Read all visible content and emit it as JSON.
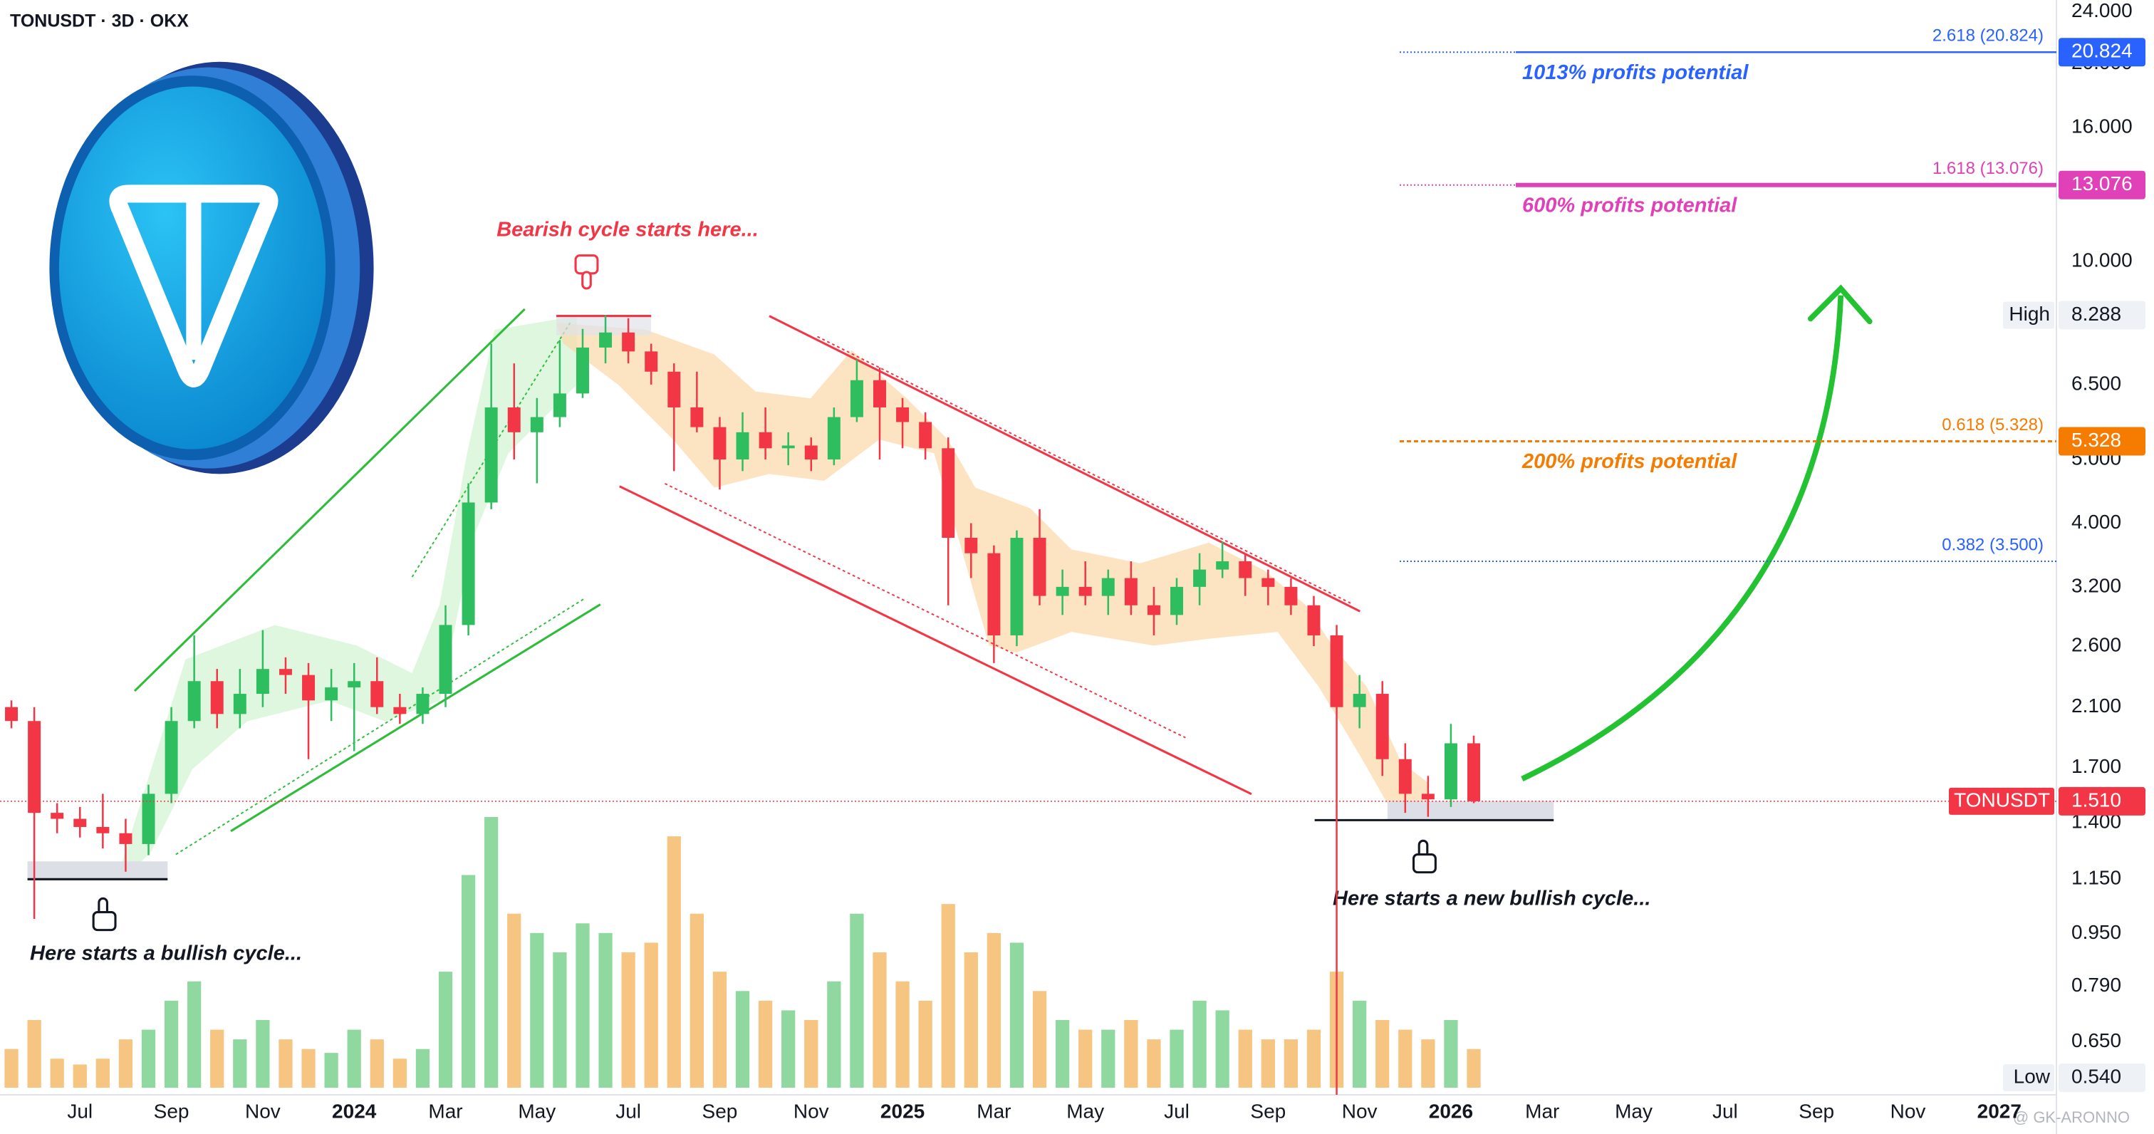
{
  "chart_data": {
    "type": "candlestick",
    "title": "TONUSDT · 3D · OKX",
    "log_scale": true,
    "grid": false,
    "ylim": [
      0.54,
      25
    ],
    "yticks": [
      {
        "value": 24,
        "label": "24.000"
      },
      {
        "value": 20,
        "label": "20.000"
      },
      {
        "value": 16,
        "label": "16.000"
      },
      {
        "value": 10,
        "label": "10.000"
      },
      {
        "value": 6.5,
        "label": "6.500"
      },
      {
        "value": 5,
        "label": "5.000"
      },
      {
        "value": 4,
        "label": "4.000"
      },
      {
        "value": 3.2,
        "label": "3.200"
      },
      {
        "value": 2.6,
        "label": "2.600"
      },
      {
        "value": 2.1,
        "label": "2.100"
      },
      {
        "value": 1.7,
        "label": "1.700"
      },
      {
        "value": 1.4,
        "label": "1.400"
      },
      {
        "value": 1.15,
        "label": "1.150"
      },
      {
        "value": 0.95,
        "label": "0.950"
      },
      {
        "value": 0.79,
        "label": "0.790"
      },
      {
        "value": 0.65,
        "label": "0.650"
      }
    ],
    "categories": [
      null,
      null,
      null,
      "Jul",
      null,
      null,
      null,
      "Sep",
      null,
      null,
      null,
      "Nov",
      null,
      null,
      null,
      "2024",
      null,
      null,
      null,
      "Mar",
      null,
      null,
      null,
      "May",
      null,
      null,
      null,
      "Jul",
      null,
      null,
      null,
      "Sep",
      null,
      null,
      null,
      "Nov",
      null,
      null,
      null,
      "2025",
      null,
      null,
      null,
      "Mar",
      null,
      null,
      null,
      "May",
      null,
      null,
      null,
      "Jul",
      null,
      null,
      null,
      "Sep",
      null,
      null,
      null,
      "Nov",
      null,
      null,
      null,
      "2026",
      null,
      null,
      null,
      "Mar",
      null,
      null,
      null,
      "May",
      null,
      null,
      null,
      "Jul",
      null,
      null,
      null,
      "Sep",
      null,
      null,
      null,
      "Nov",
      null,
      null,
      null,
      "2027",
      null,
      null
    ],
    "open": [
      2.1,
      2.0,
      1.45,
      1.42,
      1.38,
      1.35,
      1.3,
      1.55,
      2.0,
      2.3,
      2.05,
      2.2,
      2.4,
      2.35,
      2.15,
      2.25,
      2.3,
      2.1,
      2.05,
      2.2,
      2.8,
      4.3,
      6.0,
      5.5,
      5.8,
      6.3,
      7.4,
      7.8,
      7.3,
      6.8,
      6.0,
      5.6,
      5.0,
      5.5,
      5.2,
      5.25,
      5.0,
      5.8,
      6.6,
      6.0,
      5.7,
      5.2,
      3.8,
      3.6,
      2.7,
      3.8,
      3.1,
      3.2,
      3.1,
      3.3,
      3.0,
      2.9,
      3.2,
      3.4,
      3.5,
      3.3,
      3.2,
      3.0,
      2.7,
      2.1,
      2.2,
      1.75,
      1.55,
      1.52,
      1.85,
      null,
      null,
      null,
      null,
      null,
      null,
      null,
      null,
      null,
      null,
      null,
      null,
      null,
      null,
      null,
      null,
      null,
      null,
      null,
      null,
      null,
      null,
      null,
      null,
      null
    ],
    "high": [
      2.15,
      2.1,
      1.5,
      1.48,
      1.55,
      1.42,
      1.6,
      2.1,
      2.7,
      2.4,
      2.4,
      2.75,
      2.5,
      2.45,
      2.4,
      2.45,
      2.5,
      2.2,
      2.25,
      3.0,
      4.6,
      7.5,
      7.0,
      6.2,
      7.6,
      7.9,
      8.288,
      8.2,
      7.5,
      7.0,
      6.8,
      5.8,
      5.9,
      6.0,
      5.5,
      5.4,
      6.0,
      7.1,
      6.9,
      6.2,
      5.9,
      5.4,
      4.0,
      3.7,
      3.9,
      4.2,
      3.4,
      3.5,
      3.4,
      3.5,
      3.2,
      3.3,
      3.6,
      3.75,
      3.6,
      3.4,
      3.3,
      3.1,
      2.8,
      2.35,
      2.3,
      1.85,
      1.65,
      1.98,
      1.9,
      null,
      null,
      null,
      null,
      null,
      null,
      null,
      null,
      null,
      null,
      null,
      null,
      null,
      null,
      null,
      null,
      null,
      null,
      null,
      null,
      null,
      null,
      null,
      null,
      null
    ],
    "low": [
      1.95,
      1.0,
      1.35,
      1.33,
      1.28,
      1.18,
      1.25,
      1.5,
      1.95,
      1.95,
      1.95,
      2.1,
      2.2,
      1.75,
      2.0,
      1.8,
      2.05,
      1.98,
      1.98,
      2.1,
      2.7,
      4.2,
      5.0,
      4.6,
      5.6,
      6.2,
      7.0,
      7.0,
      6.5,
      4.8,
      5.5,
      4.5,
      4.8,
      5.0,
      4.9,
      4.8,
      4.9,
      5.7,
      5.0,
      5.2,
      5.0,
      3.0,
      3.3,
      2.45,
      2.6,
      3.0,
      2.9,
      3.0,
      2.9,
      2.9,
      2.7,
      2.8,
      3.0,
      3.3,
      3.1,
      3.0,
      2.9,
      2.6,
      0.54,
      1.95,
      1.65,
      1.45,
      1.43,
      1.48,
      1.5,
      null,
      null,
      null,
      null,
      null,
      null,
      null,
      null,
      null,
      null,
      null,
      null,
      null,
      null,
      null,
      null,
      null,
      null,
      null,
      null,
      null,
      null,
      null,
      null,
      null
    ],
    "close": [
      2.0,
      1.45,
      1.42,
      1.38,
      1.35,
      1.3,
      1.55,
      2.0,
      2.3,
      2.05,
      2.2,
      2.4,
      2.35,
      2.15,
      2.25,
      2.3,
      2.1,
      2.05,
      2.2,
      2.8,
      4.3,
      6.0,
      5.5,
      5.8,
      6.3,
      7.4,
      7.8,
      7.3,
      6.8,
      6.0,
      5.6,
      5.0,
      5.5,
      5.2,
      5.25,
      5.0,
      5.8,
      6.6,
      6.0,
      5.7,
      5.2,
      3.8,
      3.6,
      2.7,
      3.8,
      3.1,
      3.2,
      3.1,
      3.3,
      3.0,
      2.9,
      3.2,
      3.4,
      3.5,
      3.3,
      3.2,
      3.0,
      2.7,
      2.1,
      2.2,
      1.75,
      1.55,
      1.52,
      1.85,
      1.51,
      null,
      null,
      null,
      null,
      null,
      null,
      null,
      null,
      null,
      null,
      null,
      null,
      null,
      null,
      null,
      null,
      null,
      null,
      null,
      null,
      null,
      null,
      null,
      null,
      null
    ],
    "volume": [
      20,
      35,
      15,
      12,
      15,
      25,
      30,
      45,
      55,
      30,
      25,
      35,
      25,
      20,
      18,
      30,
      25,
      15,
      20,
      60,
      110,
      140,
      90,
      80,
      70,
      85,
      80,
      70,
      75,
      130,
      90,
      60,
      50,
      45,
      40,
      35,
      55,
      90,
      70,
      55,
      45,
      95,
      70,
      80,
      75,
      50,
      35,
      30,
      30,
      35,
      25,
      30,
      45,
      40,
      30,
      25,
      25,
      30,
      60,
      45,
      35,
      30,
      25,
      35,
      20,
      null,
      null,
      null,
      null,
      null,
      null,
      null,
      null,
      null,
      null,
      null,
      null,
      null,
      null,
      null,
      null,
      null,
      null,
      null,
      null,
      null,
      null,
      null,
      null,
      null
    ],
    "up_color": "#2ebd5f",
    "down_color": "#f23645",
    "volume_up_color": "#8fd9a0",
    "volume_down_color": "#f6c581",
    "levels": [
      {
        "label": "2.618 (20.824)",
        "value": 20.824,
        "badge": "20.824",
        "note": "1013% profits potential",
        "color": "#2962ff",
        "line_style": "dotted-solid"
      },
      {
        "label": "1.618 (13.076)",
        "value": 13.076,
        "badge": "13.076",
        "note": "600% profits potential",
        "color": "#e040b8",
        "line_style": "dotted-thick"
      },
      {
        "label": "0.618 (5.328)",
        "value": 5.328,
        "badge": "5.328",
        "note": "200% profits potential",
        "color": "#f57c00",
        "line_style": "dashed"
      },
      {
        "label": "0.382 (3.500)",
        "value": 3.5,
        "color": "#2962ff",
        "line_style": "dotted"
      }
    ],
    "badges": [
      {
        "name": "High",
        "value": 8.288,
        "label": "8.288",
        "style": "plain"
      },
      {
        "name": "TONUSDT",
        "value": 1.51,
        "label": "1.510",
        "style": "last",
        "color": "#f23645"
      },
      {
        "name": "Low",
        "value": 0.54,
        "label": "0.540",
        "style": "plain"
      }
    ],
    "bearish_note": "Bearish cycle starts here...",
    "bullish_note": "Here starts a bullish cycle...",
    "new_bullish_note": "Here starts a new bullish cycle...",
    "watermark": "@ GK-ARONNO"
  }
}
